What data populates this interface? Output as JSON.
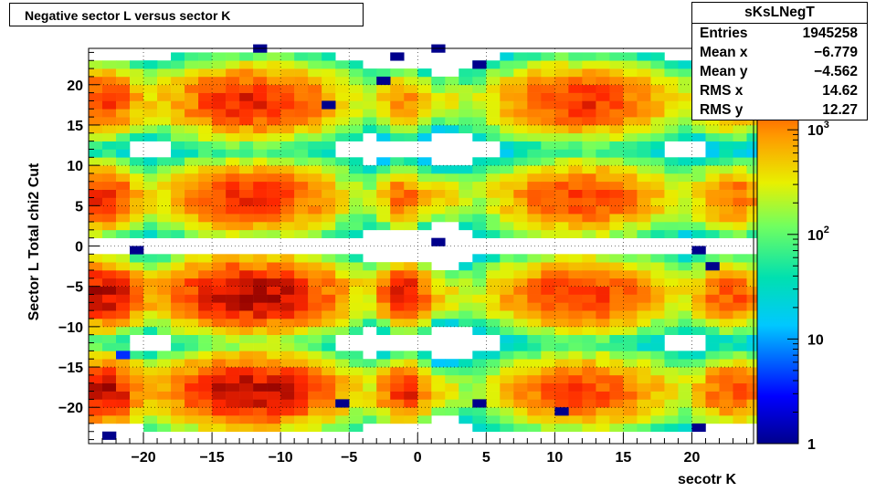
{
  "chart_title": "Negative sector L versus sector K",
  "stats": {
    "name": "sKsLNegT",
    "rows": [
      {
        "label": "Entries",
        "value": "1945258"
      },
      {
        "label": "Mean x",
        "value": "−6.779"
      },
      {
        "label": "Mean y",
        "value": "−4.562"
      },
      {
        "label": "RMS x",
        "value": "14.62"
      },
      {
        "label": "RMS y",
        "value": "12.27"
      }
    ]
  },
  "chart_data": {
    "type": "heatmap",
    "xlabel": "secotr K",
    "ylabel": "Sector L  Total chi2 Cut",
    "xlim": [
      -24,
      24.5
    ],
    "ylim": [
      -24.5,
      24.5
    ],
    "bin_width": 1,
    "x_ticks": [
      -20,
      -15,
      -10,
      -5,
      0,
      5,
      10,
      15,
      20
    ],
    "y_ticks": [
      -20,
      -15,
      -10,
      -5,
      0,
      5,
      10,
      15,
      20
    ],
    "tick_labels_x": [
      "−20",
      "−15",
      "−10",
      "−5",
      "0",
      "5",
      "10",
      "15",
      "20"
    ],
    "tick_labels_y": [
      "−20",
      "−15",
      "−10",
      "−5",
      "0",
      "5",
      "10",
      "15",
      "20"
    ],
    "grid": true,
    "color_scale": "log",
    "z_range": [
      1,
      6000
    ],
    "colorbar_ticks": [
      {
        "value": 1,
        "label": "1"
      },
      {
        "value": 10,
        "label": "10"
      },
      {
        "value": 100,
        "label": "10",
        "exp": "2"
      },
      {
        "value": 1000,
        "label": "10",
        "exp": "3"
      }
    ],
    "blobs": [
      {
        "cx": -12,
        "cy": 18,
        "sx": 3.5,
        "sy": 2.2,
        "peak": 3000,
        "ylo": 12,
        "yhi": 24
      },
      {
        "cx": -12,
        "cy": 6,
        "sx": 3.5,
        "sy": 2.2,
        "peak": 2500,
        "ylo": 1,
        "yhi": 12
      },
      {
        "cx": -12,
        "cy": -6,
        "sx": 3.5,
        "sy": 2.2,
        "peak": 5000,
        "ylo": -12,
        "yhi": -1
      },
      {
        "cx": -12,
        "cy": -18,
        "sx": 3.5,
        "sy": 2.2,
        "peak": 4500,
        "ylo": -23,
        "yhi": -12
      },
      {
        "cx": 12,
        "cy": 18,
        "sx": 3.5,
        "sy": 2.2,
        "peak": 2500,
        "ylo": 12,
        "yhi": 24
      },
      {
        "cx": 12,
        "cy": 6,
        "sx": 3.5,
        "sy": 2.2,
        "peak": 2000,
        "ylo": 1,
        "yhi": 12
      },
      {
        "cx": 12,
        "cy": -6,
        "sx": 3.5,
        "sy": 2.2,
        "peak": 2500,
        "ylo": -12,
        "yhi": -1
      },
      {
        "cx": 12,
        "cy": -18,
        "sx": 3.5,
        "sy": 2.2,
        "peak": 2000,
        "ylo": -23,
        "yhi": -12
      },
      {
        "cx": -23,
        "cy": 18,
        "sx": 1.5,
        "sy": 2.0,
        "peak": 2500,
        "ylo": 12,
        "yhi": 23
      },
      {
        "cx": -23,
        "cy": 6,
        "sx": 1.5,
        "sy": 2.0,
        "peak": 2500,
        "ylo": 1,
        "yhi": 12
      },
      {
        "cx": -23,
        "cy": -6,
        "sx": 1.5,
        "sy": 2.0,
        "peak": 4500,
        "ylo": -12,
        "yhi": -1
      },
      {
        "cx": -23,
        "cy": -18,
        "sx": 1.5,
        "sy": 2.0,
        "peak": 4500,
        "ylo": -22,
        "yhi": -12
      },
      {
        "cx": -1,
        "cy": 18,
        "sx": 1.0,
        "sy": 1.8,
        "peak": 1200,
        "ylo": 13,
        "yhi": 22
      },
      {
        "cx": -1,
        "cy": 6,
        "sx": 1.0,
        "sy": 1.8,
        "peak": 1500,
        "ylo": 2,
        "yhi": 11
      },
      {
        "cx": -1,
        "cy": -6,
        "sx": 1.0,
        "sy": 1.8,
        "peak": 4000,
        "ylo": -11,
        "yhi": -2
      },
      {
        "cx": -1,
        "cy": -18,
        "sx": 1.0,
        "sy": 1.8,
        "peak": 3000,
        "ylo": -22,
        "yhi": -13
      },
      {
        "cx": 2,
        "cy": 18,
        "sx": 1.0,
        "sy": 1.5,
        "peak": 300,
        "ylo": 13,
        "yhi": 21
      },
      {
        "cx": 2,
        "cy": 6,
        "sx": 1.0,
        "sy": 1.5,
        "peak": 500,
        "ylo": 3,
        "yhi": 10
      },
      {
        "cx": 2,
        "cy": -6,
        "sx": 1.0,
        "sy": 1.5,
        "peak": 400,
        "ylo": -10,
        "yhi": -3
      },
      {
        "cx": 2,
        "cy": -18,
        "sx": 1.0,
        "sy": 1.5,
        "peak": 300,
        "ylo": -21,
        "yhi": -14
      },
      {
        "cx": 23,
        "cy": 18,
        "sx": 1.5,
        "sy": 2.0,
        "peak": 1500,
        "ylo": 12,
        "yhi": 23
      },
      {
        "cx": 23,
        "cy": 6,
        "sx": 1.5,
        "sy": 2.0,
        "peak": 1500,
        "ylo": 1,
        "yhi": 12
      },
      {
        "cx": 23,
        "cy": -6,
        "sx": 1.5,
        "sy": 2.0,
        "peak": 2000,
        "ylo": -12,
        "yhi": -1
      },
      {
        "cx": 23,
        "cy": -18,
        "sx": 1.5,
        "sy": 2.0,
        "peak": 2000,
        "ylo": -22,
        "yhi": -12
      }
    ],
    "sparse_points": [
      [
        -20,
        22,
        40
      ],
      [
        -12,
        24,
        1
      ],
      [
        -7,
        17,
        1
      ],
      [
        -3,
        20,
        1
      ],
      [
        1,
        24,
        1
      ],
      [
        4,
        22,
        1
      ],
      [
        20,
        23,
        1
      ],
      [
        -22,
        -14,
        4
      ],
      [
        -2,
        23,
        1
      ],
      [
        1,
        0,
        1
      ],
      [
        -21,
        -1,
        1
      ],
      [
        20,
        -1,
        1
      ],
      [
        21,
        -3,
        1
      ],
      [
        -6,
        -20,
        1
      ],
      [
        4,
        -20,
        1
      ],
      [
        -23,
        -24,
        1
      ],
      [
        20,
        -23,
        1
      ],
      [
        10,
        -21,
        1
      ]
    ]
  }
}
